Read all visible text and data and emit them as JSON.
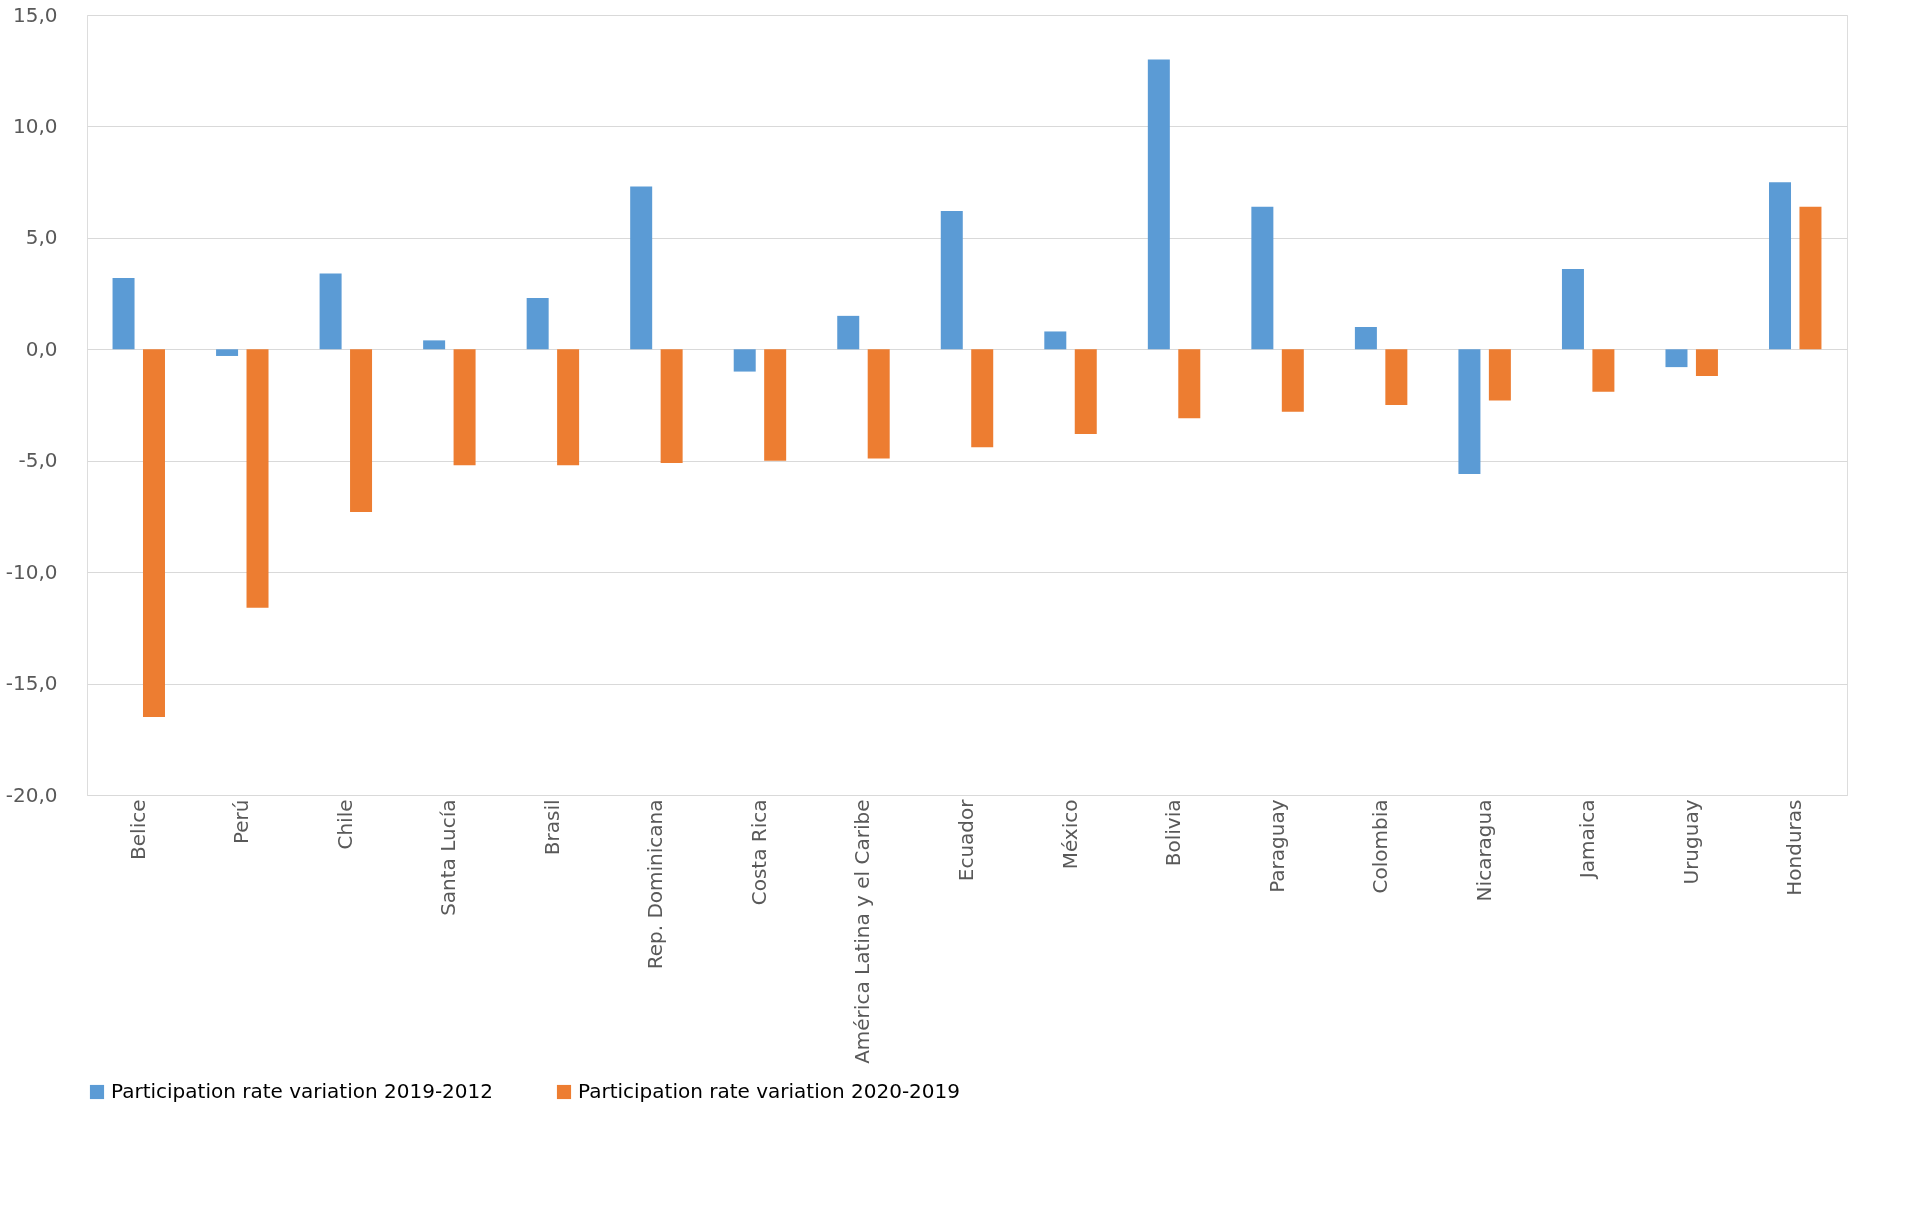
{
  "chart_data": {
    "type": "bar",
    "categories": [
      "Belice",
      "Perú",
      "Chile",
      "Santa Lucía",
      "Brasil",
      "Rep. Dominicana",
      "Costa Rica",
      "América Latina y el Caribe",
      "Ecuador",
      "México",
      "Bolivia",
      "Paraguay",
      "Colombia",
      "Nicaragua",
      "Jamaica",
      "Uruguay",
      "Honduras"
    ],
    "series": [
      {
        "name": "Participation rate variation 2019-2012",
        "color": "#5b9bd5",
        "values": [
          3.2,
          -0.3,
          3.4,
          0.4,
          2.3,
          7.3,
          -1.0,
          1.5,
          6.2,
          0.8,
          13.0,
          6.4,
          1.0,
          -5.6,
          3.6,
          -0.8,
          7.5
        ]
      },
      {
        "name": "Participation rate variation 2020-2019",
        "color": "#ed7d31",
        "values": [
          -16.5,
          -11.6,
          -7.3,
          -5.2,
          -5.2,
          -5.1,
          -5.0,
          -4.9,
          -4.4,
          -3.8,
          -3.1,
          -2.8,
          -2.5,
          -2.3,
          -1.9,
          -1.2,
          6.4
        ]
      }
    ],
    "ylim": [
      -20,
      15
    ],
    "yticks": [
      {
        "value": -20,
        "label": "-20,0"
      },
      {
        "value": -15,
        "label": "-15,0"
      },
      {
        "value": -10,
        "label": "-10,0"
      },
      {
        "value": -5,
        "label": "-5,0"
      },
      {
        "value": 0,
        "label": "0,0"
      },
      {
        "value": 5,
        "label": "5,0"
      },
      {
        "value": 10,
        "label": "10,0"
      },
      {
        "value": 15,
        "label": "15,0"
      }
    ],
    "grid": "y",
    "legend": "bottom"
  }
}
